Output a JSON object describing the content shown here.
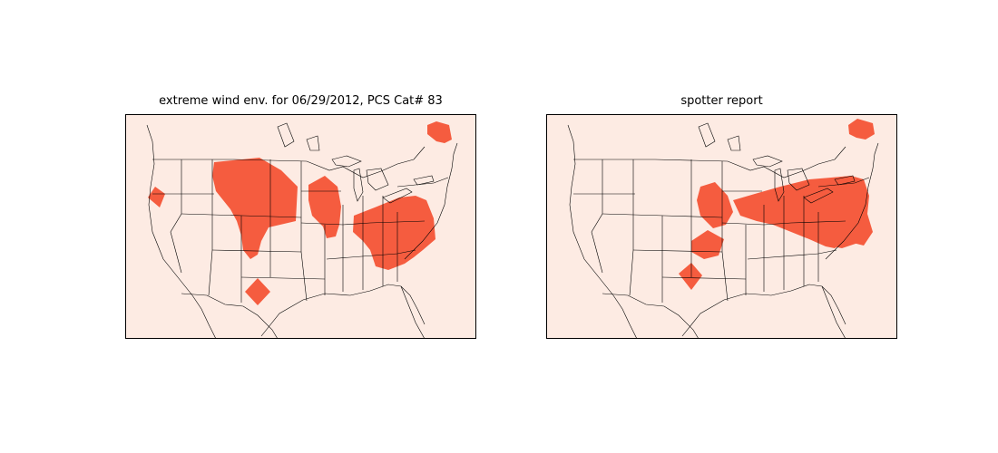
{
  "maps": [
    {
      "title": "extreme wind env. for 06/29/2012, PCS Cat# 83"
    },
    {
      "title": "spotter report"
    }
  ],
  "colors": {
    "land": "#fdebe3",
    "highlight": "#f55c3f",
    "border": "#000000",
    "background": "#ffffff"
  }
}
